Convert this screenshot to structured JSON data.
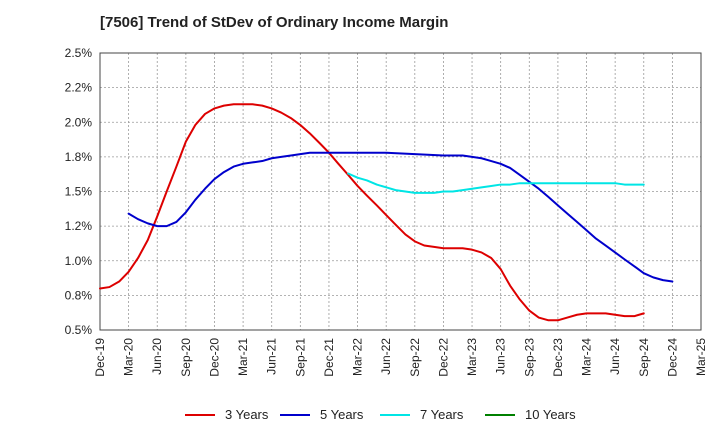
{
  "chart_data": {
    "type": "line",
    "title": "[7506]  Trend of StDev of Ordinary Income Margin",
    "xlabel": "",
    "ylabel": "",
    "x_labels": [
      "Dec-19",
      "Mar-20",
      "Jun-20",
      "Sep-20",
      "Dec-20",
      "Mar-21",
      "Jun-21",
      "Sep-21",
      "Dec-21",
      "Mar-22",
      "Jun-22",
      "Sep-22",
      "Dec-22",
      "Mar-23",
      "Jun-23",
      "Sep-23",
      "Dec-23",
      "Mar-24",
      "Jun-24",
      "Sep-24",
      "Dec-24",
      "Mar-25"
    ],
    "y_ticks": [
      "2.5%",
      "2.2%",
      "2.0%",
      "1.8%",
      "1.5%",
      "1.2%",
      "1.0%",
      "0.8%",
      "0.5%"
    ],
    "ylim": [
      0.5,
      2.5
    ],
    "grid": true,
    "legend_position": "bottom",
    "series": [
      {
        "name": "3 Years",
        "color": "#dd0000",
        "points": [
          [
            0,
            0.8
          ],
          [
            0.33,
            0.81
          ],
          [
            0.67,
            0.85
          ],
          [
            1,
            0.92
          ],
          [
            1.33,
            1.02
          ],
          [
            1.67,
            1.15
          ],
          [
            2,
            1.32
          ],
          [
            2.33,
            1.5
          ],
          [
            2.67,
            1.68
          ],
          [
            3,
            1.86
          ],
          [
            3.33,
            1.98
          ],
          [
            3.67,
            2.06
          ],
          [
            4,
            2.1
          ],
          [
            4.33,
            2.12
          ],
          [
            4.67,
            2.13
          ],
          [
            5,
            2.13
          ],
          [
            5.33,
            2.13
          ],
          [
            5.67,
            2.12
          ],
          [
            6,
            2.1
          ],
          [
            6.33,
            2.07
          ],
          [
            6.67,
            2.03
          ],
          [
            7,
            1.98
          ],
          [
            7.33,
            1.92
          ],
          [
            7.67,
            1.85
          ],
          [
            8,
            1.78
          ],
          [
            8.33,
            1.7
          ],
          [
            8.67,
            1.62
          ],
          [
            9,
            1.54
          ],
          [
            9.33,
            1.47
          ],
          [
            9.67,
            1.4
          ],
          [
            10,
            1.33
          ],
          [
            10.33,
            1.26
          ],
          [
            10.67,
            1.19
          ],
          [
            11,
            1.14
          ],
          [
            11.33,
            1.11
          ],
          [
            11.67,
            1.1
          ],
          [
            12,
            1.09
          ],
          [
            12.33,
            1.09
          ],
          [
            12.67,
            1.09
          ],
          [
            13,
            1.08
          ],
          [
            13.33,
            1.06
          ],
          [
            13.67,
            1.02
          ],
          [
            14,
            0.94
          ],
          [
            14.33,
            0.82
          ],
          [
            14.67,
            0.72
          ],
          [
            15,
            0.64
          ],
          [
            15.33,
            0.59
          ],
          [
            15.67,
            0.57
          ],
          [
            16,
            0.57
          ],
          [
            16.33,
            0.59
          ],
          [
            16.67,
            0.61
          ],
          [
            17,
            0.62
          ],
          [
            17.33,
            0.62
          ],
          [
            17.67,
            0.62
          ],
          [
            18,
            0.61
          ],
          [
            18.33,
            0.6
          ],
          [
            18.67,
            0.6
          ],
          [
            19,
            0.62
          ]
        ]
      },
      {
        "name": "5 Years",
        "color": "#0000cc",
        "points": [
          [
            1,
            1.34
          ],
          [
            1.33,
            1.3
          ],
          [
            1.67,
            1.27
          ],
          [
            2,
            1.25
          ],
          [
            2.33,
            1.25
          ],
          [
            2.67,
            1.28
          ],
          [
            3,
            1.35
          ],
          [
            3.33,
            1.44
          ],
          [
            3.67,
            1.52
          ],
          [
            4,
            1.59
          ],
          [
            4.33,
            1.64
          ],
          [
            4.67,
            1.68
          ],
          [
            5,
            1.7
          ],
          [
            5.33,
            1.71
          ],
          [
            5.67,
            1.72
          ],
          [
            6,
            1.74
          ],
          [
            6.33,
            1.75
          ],
          [
            6.67,
            1.76
          ],
          [
            7,
            1.77
          ],
          [
            7.33,
            1.78
          ],
          [
            7.67,
            1.78
          ],
          [
            8,
            1.78
          ],
          [
            9,
            1.78
          ],
          [
            10,
            1.78
          ],
          [
            11,
            1.77
          ],
          [
            12,
            1.76
          ],
          [
            12.67,
            1.76
          ],
          [
            13,
            1.75
          ],
          [
            13.33,
            1.74
          ],
          [
            13.67,
            1.72
          ],
          [
            14,
            1.7
          ],
          [
            14.33,
            1.67
          ],
          [
            14.67,
            1.62
          ],
          [
            15,
            1.57
          ],
          [
            15.33,
            1.52
          ],
          [
            15.67,
            1.46
          ],
          [
            16,
            1.4
          ],
          [
            16.33,
            1.34
          ],
          [
            16.67,
            1.28
          ],
          [
            17,
            1.22
          ],
          [
            17.33,
            1.16
          ],
          [
            17.67,
            1.11
          ],
          [
            18,
            1.06
          ],
          [
            18.33,
            1.01
          ],
          [
            18.67,
            0.96
          ],
          [
            19,
            0.91
          ],
          [
            19.33,
            0.88
          ],
          [
            19.67,
            0.86
          ],
          [
            20,
            0.85
          ]
        ]
      },
      {
        "name": "7 Years",
        "color": "#00e5e5",
        "points": [
          [
            8.67,
            1.63
          ],
          [
            9,
            1.6
          ],
          [
            9.33,
            1.58
          ],
          [
            9.67,
            1.55
          ],
          [
            10,
            1.53
          ],
          [
            10.33,
            1.51
          ],
          [
            10.67,
            1.5
          ],
          [
            11,
            1.49
          ],
          [
            11.33,
            1.49
          ],
          [
            11.67,
            1.49
          ],
          [
            12,
            1.5
          ],
          [
            12.33,
            1.5
          ],
          [
            12.67,
            1.51
          ],
          [
            13,
            1.52
          ],
          [
            13.33,
            1.53
          ],
          [
            13.67,
            1.54
          ],
          [
            14,
            1.55
          ],
          [
            14.33,
            1.55
          ],
          [
            14.67,
            1.56
          ],
          [
            15,
            1.56
          ],
          [
            15.33,
            1.56
          ],
          [
            15.67,
            1.56
          ],
          [
            16,
            1.56
          ],
          [
            16.33,
            1.56
          ],
          [
            16.67,
            1.56
          ],
          [
            17,
            1.56
          ],
          [
            17.33,
            1.56
          ],
          [
            17.67,
            1.56
          ],
          [
            18,
            1.56
          ],
          [
            18.33,
            1.55
          ],
          [
            18.67,
            1.55
          ],
          [
            19,
            1.55
          ]
        ]
      },
      {
        "name": "10 Years",
        "color": "#008000",
        "points": []
      }
    ]
  }
}
